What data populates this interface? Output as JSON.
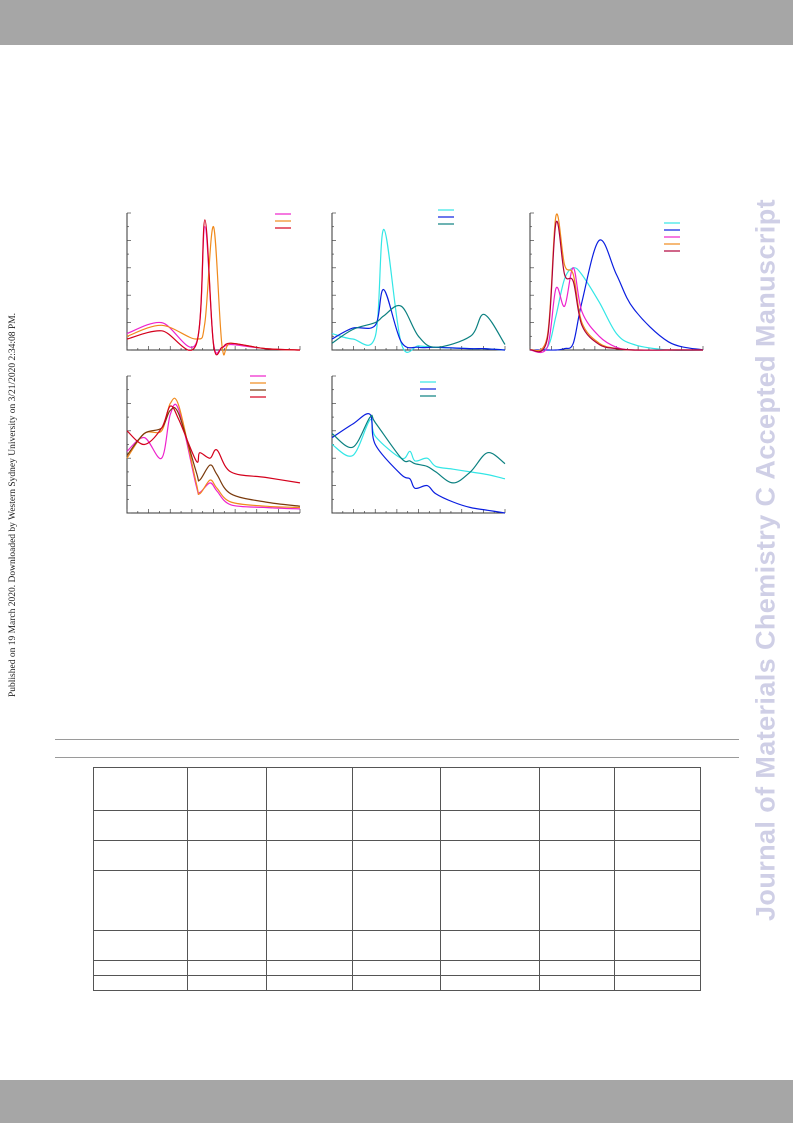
{
  "page": {
    "side_note": "Published on 19 March 2020. Downloaded by Western Sydney University on 3/21/2020 2:34:08 PM.",
    "watermark": "Journal of Materials Chemistry C Accepted Manuscript"
  },
  "colors": {
    "magenta": "#ee22cc",
    "orange": "#f08a1c",
    "red": "#d4001c",
    "crimson": "#ff1060",
    "cyan": "#33e6e6",
    "blue": "#0a1ee0",
    "teal": "#0b8080",
    "brown": "#7a3a0c",
    "darkred": "#b0003a"
  },
  "chart_data": [
    {
      "type": "line",
      "panel": "top-left",
      "x": [
        0,
        20,
        40,
        45,
        50,
        55,
        60,
        80,
        100
      ],
      "series": [
        {
          "color": "magenta",
          "values": [
            0.12,
            0.2,
            0.05,
            0.9,
            0.05,
            0.02,
            0.04,
            0.01,
            0.0
          ]
        },
        {
          "color": "orange",
          "values": [
            0.1,
            0.18,
            0.08,
            0.2,
            0.9,
            0.02,
            0.05,
            0.01,
            0.0
          ]
        },
        {
          "color": "red",
          "values": [
            0.08,
            0.14,
            0.04,
            0.95,
            0.04,
            0.02,
            0.05,
            0.01,
            0.0
          ]
        }
      ]
    },
    {
      "type": "line",
      "panel": "top-middle",
      "x": [
        0,
        12,
        25,
        30,
        40,
        50,
        60,
        80,
        88,
        100
      ],
      "series": [
        {
          "color": "cyan",
          "values": [
            0.12,
            0.08,
            0.1,
            0.88,
            0.05,
            0.03,
            0.02,
            0.01,
            0.01,
            0.0
          ]
        },
        {
          "color": "blue",
          "values": [
            0.08,
            0.16,
            0.18,
            0.44,
            0.06,
            0.02,
            0.02,
            0.01,
            0.01,
            0.0
          ]
        },
        {
          "color": "teal",
          "values": [
            0.05,
            0.15,
            0.2,
            0.25,
            0.32,
            0.1,
            0.02,
            0.1,
            0.26,
            0.04
          ]
        }
      ]
    },
    {
      "type": "line",
      "panel": "top-right",
      "x": [
        0,
        10,
        15,
        20,
        25,
        30,
        40,
        50,
        60,
        80,
        100
      ],
      "series": [
        {
          "color": "cyan",
          "values": [
            0.0,
            0.02,
            0.25,
            0.52,
            0.6,
            0.55,
            0.35,
            0.12,
            0.04,
            0.0,
            0.0
          ]
        },
        {
          "color": "blue",
          "values": [
            0.0,
            0.0,
            0.0,
            0.01,
            0.05,
            0.35,
            0.8,
            0.55,
            0.3,
            0.06,
            0.0
          ]
        },
        {
          "color": "magenta",
          "values": [
            0.0,
            0.02,
            0.45,
            0.32,
            0.6,
            0.28,
            0.1,
            0.02,
            0.0,
            0.0,
            0.0
          ]
        },
        {
          "color": "orange",
          "values": [
            0.0,
            0.1,
            0.98,
            0.62,
            0.55,
            0.2,
            0.05,
            0.01,
            0.0,
            0.0,
            0.0
          ]
        },
        {
          "color": "darkred",
          "values": [
            0.0,
            0.08,
            0.93,
            0.55,
            0.5,
            0.18,
            0.04,
            0.01,
            0.0,
            0.0,
            0.0
          ]
        }
      ]
    },
    {
      "type": "line",
      "panel": "bottom-left",
      "x": [
        0,
        10,
        20,
        25,
        30,
        40,
        42,
        48,
        52,
        60,
        80,
        100
      ],
      "series": [
        {
          "color": "magenta",
          "values": [
            0.45,
            0.55,
            0.4,
            0.72,
            0.75,
            0.2,
            0.15,
            0.22,
            0.16,
            0.06,
            0.04,
            0.03
          ]
        },
        {
          "color": "orange",
          "values": [
            0.4,
            0.58,
            0.6,
            0.8,
            0.78,
            0.22,
            0.14,
            0.24,
            0.18,
            0.08,
            0.05,
            0.04
          ]
        },
        {
          "color": "brown",
          "values": [
            0.42,
            0.58,
            0.62,
            0.75,
            0.72,
            0.3,
            0.24,
            0.35,
            0.28,
            0.14,
            0.08,
            0.05
          ]
        },
        {
          "color": "red",
          "values": [
            0.6,
            0.5,
            0.62,
            0.78,
            0.68,
            0.38,
            0.44,
            0.4,
            0.46,
            0.3,
            0.26,
            0.22
          ]
        }
      ]
    },
    {
      "type": "line",
      "panel": "bottom-middle",
      "x": [
        0,
        12,
        22,
        25,
        40,
        45,
        48,
        55,
        60,
        70,
        80,
        90,
        100
      ],
      "series": [
        {
          "color": "cyan",
          "values": [
            0.5,
            0.42,
            0.68,
            0.56,
            0.4,
            0.45,
            0.38,
            0.4,
            0.34,
            0.32,
            0.3,
            0.28,
            0.25
          ]
        },
        {
          "color": "blue",
          "values": [
            0.55,
            0.65,
            0.72,
            0.5,
            0.28,
            0.25,
            0.18,
            0.2,
            0.14,
            0.08,
            0.04,
            0.02,
            0.0
          ]
        },
        {
          "color": "teal",
          "values": [
            0.58,
            0.48,
            0.7,
            0.66,
            0.4,
            0.38,
            0.36,
            0.34,
            0.3,
            0.22,
            0.3,
            0.44,
            0.36
          ]
        }
      ]
    }
  ],
  "table": {
    "rows": 7,
    "cols": 7
  }
}
